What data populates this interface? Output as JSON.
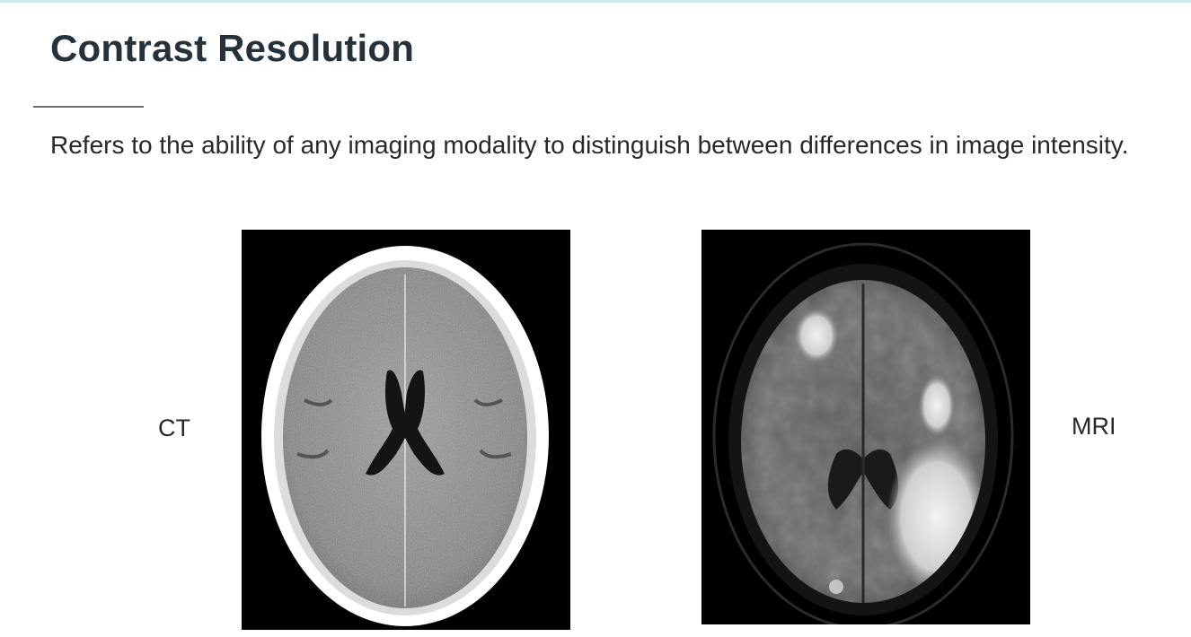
{
  "slide": {
    "title": "Contrast Resolution",
    "body": "Refers to the ability of any imaging modality to distinguish between differences in image intensity."
  },
  "images": {
    "ct": {
      "label": "CT"
    },
    "mri": {
      "label": "MRI"
    }
  }
}
